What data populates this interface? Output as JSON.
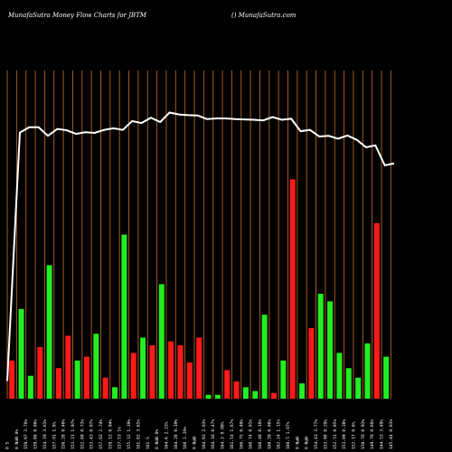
{
  "header": {
    "left": "MunafaSutra  Money Flow  Charts for JBTM",
    "right": "() MunafaSutra.com"
  },
  "colors": {
    "background": "#000000",
    "grid": "#b5651d",
    "up": "#22ee22",
    "down": "#ff1a1a",
    "line": "#ffffff"
  },
  "chart_data": {
    "type": "bar",
    "title": "MunafaSutra  Money Flow  Charts for JBTM",
    "grid": "vertical",
    "categories": [
      "0 S",
      "0 NaN 0%",
      "159.97 3.76%",
      "159.86 0.06%",
      "154.19 3.61%",
      "157.01 1.8%",
      "156.28 0.46%",
      "153.21 1.97%",
      "152.09 0.73%",
      "153.43 0.87%",
      "157.63 2.74%",
      "159.12 0.94%",
      "157.53 1%",
      "155.32 1.39%",
      "161.02 3.65%",
      "161 S",
      "0 NaN 0%",
      "164.6 2.23%",
      "164.28 0.19%",
      "168 2.26%",
      "0 NaN",
      "164.93 2.03%",
      "164.16 0.47%",
      "164.3 0.09%",
      "161.54 1.67%",
      "160.75 0.49%",
      "160.74 0.01%",
      "160.48 0.16%",
      "160.39 0.06%",
      "162.24 1.15%",
      "160.5 1.07%",
      "0 NaN",
      "0 NaN",
      "154.43 3.77%",
      "153.98 0.29%",
      "152.51 0.95%",
      "153.09 0.38%",
      "152.17 0.6%",
      "150.76 0.93%",
      "149.76 0.66%",
      "144.53 3.49%",
      "145.44 0.63%"
    ],
    "money_flow": [
      0.2,
      0.47,
      0.12,
      0.27,
      0.7,
      0.16,
      0.33,
      0.2,
      0.22,
      0.34,
      0.11,
      0.06,
      0.86,
      0.24,
      0.32,
      0.28,
      0.6,
      0.3,
      0.28,
      0.19,
      0.32,
      0.02,
      0.02,
      0.15,
      0.09,
      0.06,
      0.04,
      0.44,
      0.03,
      0.2,
      1.15,
      0.08,
      0.37,
      0.55,
      0.51,
      0.24,
      0.16,
      0.11,
      0.29,
      0.92,
      0.22
    ],
    "bar_direction": [
      "down",
      "up",
      "up",
      "down",
      "up",
      "down",
      "down",
      "up",
      "down",
      "up",
      "down",
      "up",
      "up",
      "down",
      "up",
      "down",
      "up",
      "down",
      "down",
      "down",
      "down",
      "up",
      "up",
      "down",
      "down",
      "up",
      "up",
      "up",
      "down",
      "up",
      "down",
      "up",
      "down",
      "up",
      "up",
      "up",
      "up",
      "up",
      "up",
      "down",
      "up"
    ],
    "price_line": [
      0.54,
      8.11,
      8.27,
      8.27,
      8.01,
      8.22,
      8.18,
      8.07,
      8.12,
      8.1,
      8.19,
      8.24,
      8.19,
      8.46,
      8.4,
      8.56,
      8.43,
      8.72,
      8.66,
      8.64,
      8.63,
      8.52,
      8.54,
      8.54,
      8.52,
      8.51,
      8.5,
      8.48,
      8.58,
      8.5,
      8.53,
      8.15,
      8.19,
      7.99,
      8.01,
      7.92,
      8.02,
      7.89,
      7.66,
      7.72,
      7.11,
      7.17
    ],
    "ylim": [
      0,
      10
    ]
  }
}
